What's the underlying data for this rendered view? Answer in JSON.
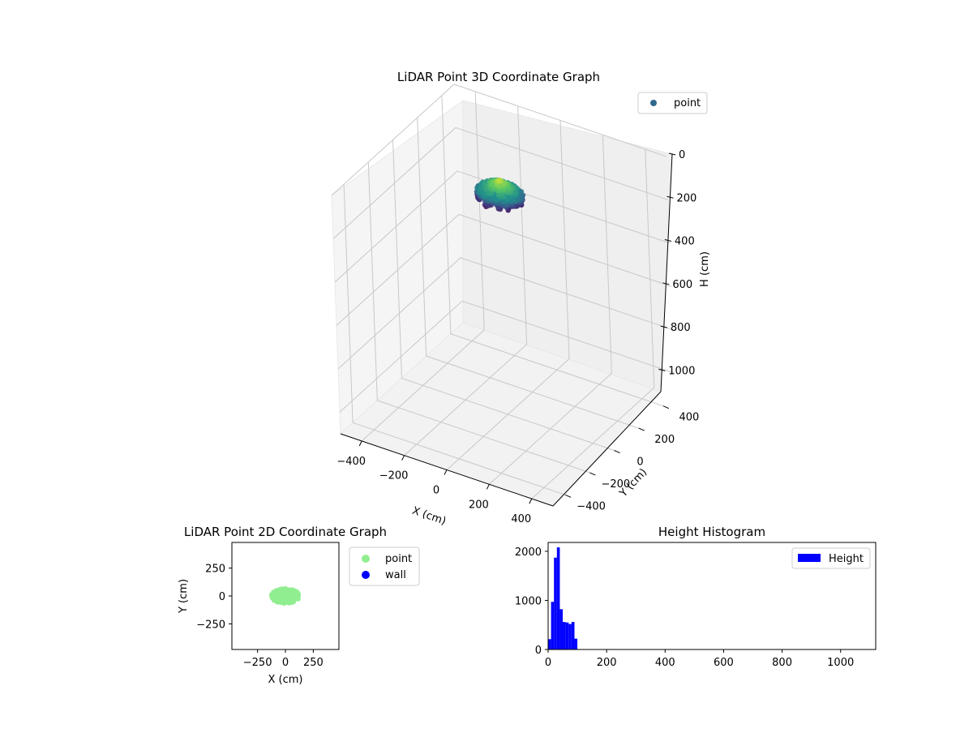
{
  "colors": {
    "pane_fill": "#f2f2f2",
    "pane_fill_side": "#f5f5f5",
    "pane_fill_floor": "#f2f2f2",
    "grid": "#c8c8c8",
    "point3d": "#31688e",
    "point2d": "#90ee90",
    "wall": "#0000ff",
    "hist": "#0000ff"
  },
  "chart_data": [
    {
      "id": "scatter3d",
      "type": "scatter",
      "title": "LiDAR Point 3D Coordinate Graph",
      "xlabel": "X (cm)",
      "ylabel": "Y (cm)",
      "zlabel": "H (cm)",
      "xlim": [
        -500,
        500
      ],
      "ylim": [
        -500,
        500
      ],
      "zlim": [
        1100,
        0
      ],
      "x_ticks": [
        -400,
        -200,
        0,
        200,
        400
      ],
      "x_tick_labels": [
        "−400",
        "−200",
        "0",
        "200",
        "400"
      ],
      "y_ticks": [
        -400,
        -200,
        0,
        200,
        400
      ],
      "y_tick_labels": [
        "−400",
        "−200",
        "0",
        "200",
        "400"
      ],
      "z_ticks": [
        0,
        200,
        400,
        600,
        800,
        1000
      ],
      "z_tick_labels": [
        "0",
        "200",
        "400",
        "600",
        "800",
        "1000"
      ],
      "legend": {
        "labels": [
          "point"
        ],
        "position": "top-right"
      },
      "cluster": {
        "x_range": [
          -100,
          100
        ],
        "y_range": [
          -80,
          80
        ],
        "h_range": [
          10,
          110
        ],
        "colormap": "viridis"
      },
      "grid": true
    },
    {
      "id": "scatter2d",
      "type": "scatter",
      "title": "LiDAR Point 2D Coordinate Graph",
      "xlabel": "X (cm)",
      "ylabel": "Y (cm)",
      "xlim": [
        -480,
        480
      ],
      "ylim": [
        -480,
        480
      ],
      "x_ticks": [
        -250,
        0,
        250
      ],
      "x_tick_labels": [
        "−250",
        "0",
        "250"
      ],
      "y_ticks": [
        -250,
        0,
        250
      ],
      "y_tick_labels": [
        "−250",
        "0",
        "250"
      ],
      "series": [
        {
          "name": "point",
          "cluster": {
            "x_range": [
              -130,
              130
            ],
            "y_range": [
              -70,
              70
            ]
          }
        },
        {
          "name": "wall",
          "points": []
        }
      ],
      "legend": {
        "labels": [
          "point",
          "wall"
        ],
        "position": "outside-right"
      },
      "grid": false
    },
    {
      "id": "histogram",
      "type": "bar",
      "title": "Height Histogram",
      "xlabel": "",
      "ylabel": "",
      "xlim": [
        0,
        1120
      ],
      "ylim": [
        0,
        2180
      ],
      "x_ticks": [
        0,
        200,
        400,
        600,
        800,
        1000
      ],
      "x_tick_labels": [
        "0",
        "200",
        "400",
        "600",
        "800",
        "1000"
      ],
      "y_ticks": [
        0,
        1000,
        2000
      ],
      "y_tick_labels": [
        "0",
        "1000",
        "2000"
      ],
      "bin_width": 10,
      "bins_start": 0,
      "values": [
        210,
        970,
        1870,
        2080,
        820,
        560,
        550,
        520,
        560,
        220
      ],
      "legend": {
        "labels": [
          "Height"
        ],
        "position": "top-right"
      },
      "grid": false
    }
  ]
}
